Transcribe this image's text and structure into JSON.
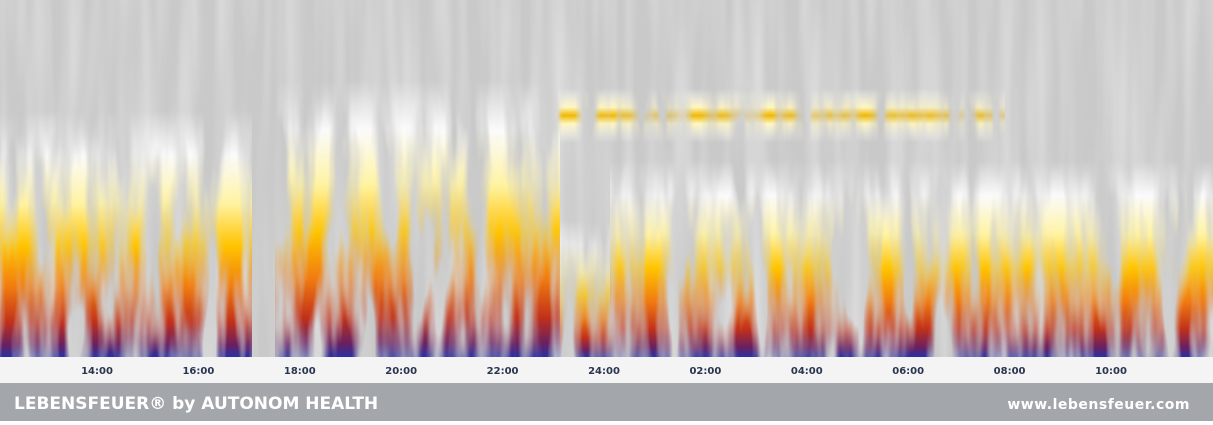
{
  "time_axis": {
    "labels": [
      "14:00",
      "16:00",
      "18:00",
      "20:00",
      "22:00",
      "24:00",
      "02:00",
      "04:00",
      "06:00",
      "08:00",
      "10:00"
    ]
  },
  "footer": {
    "brand": "LEBENSFEUER® by AUTONOM HEALTH",
    "url": "www.lebensfeuer.com"
  }
}
